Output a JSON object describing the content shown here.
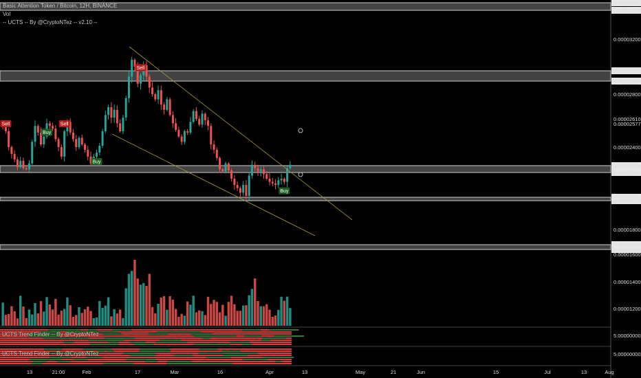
{
  "header": {
    "symbol": "Basic Attention Token / Bitcoin, 12H, BINANCE",
    "vol_label": "Vol",
    "indicator_label": "-- UCTS -- By @CryptoNTez -- v2.10 --"
  },
  "panes": {
    "trend1_label": "UCTS Trend Finder -- By @CryptoNTez",
    "trend2_label": "UCTS Trend Finder -- By @CryptoNTez",
    "trend1_value": "5.00000000",
    "trend2_value": "5.00000000"
  },
  "colors": {
    "up": "#26a69a",
    "down": "#ef5350",
    "zone": "#cfcfcf",
    "trendline": "#a89a3c",
    "signal_sell": "#b71c1c",
    "signal_buy": "#1b5e20",
    "trend_red": "#e53935",
    "trend_green": "#2e7d32"
  },
  "chart_data": {
    "type": "candlestick",
    "title": "Basic Attention Token / Bitcoin, 12H, BINANCE",
    "y_ticks": [
      "0.00003467",
      "0.00003416",
      "0.00003200",
      "0.00002970",
      "0.00002899",
      "0.00002800",
      "0.00002610",
      "0.00002577",
      "0.00002400",
      "0.00002264",
      "0.00002200",
      "0.00002041",
      "0.00002016",
      "0.00001800",
      "0.00001685",
      "0.00001649"
    ],
    "vol_ticks": [
      "0.00001600",
      "0.00001400",
      "0.00001200"
    ],
    "x_ticks": [
      "13",
      "21:00",
      "Feb",
      "17",
      "Mar",
      "16",
      "Apr",
      "13",
      "May",
      "21",
      "Jun",
      "15",
      "Jul",
      "13",
      "Aug"
    ],
    "price_close": [
      2.56e-05,
      2.52e-05,
      2.4e-05,
      2.35e-05,
      2.31e-05,
      2.25e-05,
      2.3e-05,
      2.24e-05,
      2.23e-05,
      2.28e-05,
      2.44e-05,
      2.56e-05,
      2.51e-05,
      2.42e-05,
      2.48e-05,
      2.58e-05,
      2.56e-05,
      2.54e-05,
      2.46e-05,
      2.4e-05,
      2.33e-05,
      2.52e-05,
      2.59e-05,
      2.51e-05,
      2.46e-05,
      2.4e-05,
      2.47e-05,
      2.42e-05,
      2.38e-05,
      2.33e-05,
      2.28e-05,
      2.33e-05,
      2.36e-05,
      2.41e-05,
      2.52e-05,
      2.64e-05,
      2.7e-05,
      2.62e-05,
      2.68e-05,
      2.58e-05,
      2.52e-05,
      2.62e-05,
      2.77e-05,
      2.93e-05,
      3.05e-05,
      3e-05,
      2.88e-05,
      2.94e-05,
      3.01e-05,
      2.93e-05,
      2.85e-05,
      2.8e-05,
      2.76e-05,
      2.83e-05,
      2.72e-05,
      2.68e-05,
      2.76e-05,
      2.64e-05,
      2.58e-05,
      2.53e-05,
      2.48e-05,
      2.44e-05,
      2.52e-05,
      2.51e-05,
      2.59e-05,
      2.67e-05,
      2.61e-05,
      2.57e-05,
      2.65e-05,
      2.6e-05,
      2.56e-05,
      2.42e-05,
      2.38e-05,
      2.32e-05,
      2.23e-05,
      2.21e-05,
      2.28e-05,
      2.22e-05,
      2.16e-05,
      2.12e-05,
      2.1e-05,
      2.07e-05,
      2.12e-05,
      2.05e-05,
      2.18e-05,
      2.27e-05,
      2.24e-05,
      2.21e-05,
      2.23e-05,
      2.19e-05,
      2.16e-05,
      2.14e-05,
      2.13e-05,
      2.12e-05,
      2.15e-05,
      2.16e-05,
      2.14e-05,
      2.24e-05,
      2.27e-05
    ],
    "zones": [
      {
        "low": 3.416e-05,
        "high": 3.467e-05
      },
      {
        "low": 2.899e-05,
        "high": 2.97e-05
      },
      {
        "low": 2.2e-05,
        "high": 2.264e-05
      },
      {
        "low": 2.016e-05,
        "high": 2.041e-05
      },
      {
        "low": 1.649e-05,
        "high": 1.685e-05
      }
    ],
    "signals": [
      {
        "label": "Sell",
        "type": "sell",
        "bar": 1
      },
      {
        "label": "Sell",
        "type": "sell",
        "bar": 21
      },
      {
        "label": "Buy",
        "type": "buy",
        "bar": 15
      },
      {
        "label": "Buy",
        "type": "buy",
        "bar": 32
      },
      {
        "label": "Sell",
        "type": "sell",
        "bar": 47
      },
      {
        "label": "Buy",
        "type": "buy",
        "bar": 96
      }
    ]
  }
}
